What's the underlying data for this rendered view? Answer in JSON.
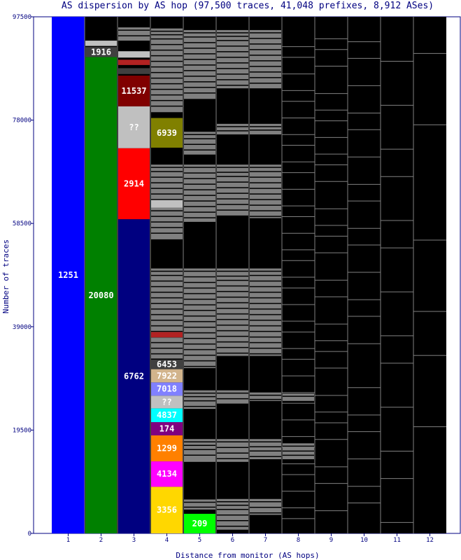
{
  "chart_data": {
    "type": "bar",
    "stacked": true,
    "title": "AS dispersion by AS hop (97,500 traces, 41,048 prefixes, 8,912 ASes)",
    "xlabel": "Distance from monitor (AS hops)",
    "ylabel": "Number of traces",
    "ylim": [
      0,
      97500
    ],
    "yticks": [
      "0",
      "19500",
      "39000",
      "58500",
      "78000",
      "97500"
    ],
    "ytick_values": [
      0,
      19500,
      39000,
      58500,
      78000,
      97500
    ],
    "categories": [
      "1",
      "2",
      "3",
      "4",
      "5",
      "6",
      "7",
      "8",
      "9",
      "10",
      "11",
      "12"
    ],
    "background_color": "#000000",
    "minor_segment_color": "#808080",
    "labeled_segments": [
      {
        "hop": 1,
        "label": "1251",
        "from": 0,
        "to": 97500,
        "color": "#0000ff"
      },
      {
        "hop": 2,
        "label": "20080",
        "from": 0,
        "to": 89900,
        "color": "#008000"
      },
      {
        "hop": 2,
        "label": "1916",
        "from": 89900,
        "to": 91800,
        "color": "#404040"
      },
      {
        "hop": 2,
        "label": "",
        "from": 92000,
        "to": 93000,
        "color": "#c0c0c0"
      },
      {
        "hop": 3,
        "label": "6762",
        "from": 0,
        "to": 59300,
        "color": "#000080"
      },
      {
        "hop": 3,
        "label": "2914",
        "from": 59300,
        "to": 72700,
        "color": "#ff0000"
      },
      {
        "hop": 3,
        "label": "??",
        "from": 72700,
        "to": 80600,
        "color": "#c0c0c0"
      },
      {
        "hop": 3,
        "label": "11537",
        "from": 80600,
        "to": 86400,
        "color": "#800000"
      },
      {
        "hop": 3,
        "label": "",
        "from": 86700,
        "to": 87800,
        "color": "#404040"
      },
      {
        "hop": 3,
        "label": "",
        "from": 88400,
        "to": 89400,
        "color": "#b22222"
      },
      {
        "hop": 3,
        "label": "",
        "from": 89800,
        "to": 91000,
        "color": "#c0c0c0"
      },
      {
        "hop": 4,
        "label": "3356",
        "from": 0,
        "to": 8800,
        "color": "#ffd700"
      },
      {
        "hop": 4,
        "label": "4134",
        "from": 8800,
        "to": 13600,
        "color": "#ff00ff"
      },
      {
        "hop": 4,
        "label": "1299",
        "from": 13600,
        "to": 18500,
        "color": "#ff8000"
      },
      {
        "hop": 4,
        "label": "174",
        "from": 18500,
        "to": 21000,
        "color": "#800080"
      },
      {
        "hop": 4,
        "label": "4837",
        "from": 21000,
        "to": 23600,
        "color": "#00ffff"
      },
      {
        "hop": 4,
        "label": "??",
        "from": 23600,
        "to": 26000,
        "color": "#c0c0c0"
      },
      {
        "hop": 4,
        "label": "7018",
        "from": 26000,
        "to": 28500,
        "color": "#8080ff"
      },
      {
        "hop": 4,
        "label": "7922",
        "from": 28500,
        "to": 31000,
        "color": "#d2b48c"
      },
      {
        "hop": 4,
        "label": "6453",
        "from": 31000,
        "to": 32800,
        "color": "#404040"
      },
      {
        "hop": 4,
        "label": "",
        "from": 37000,
        "to": 38000,
        "color": "#b22222"
      },
      {
        "hop": 4,
        "label": "6939",
        "from": 72800,
        "to": 78400,
        "color": "#808000"
      },
      {
        "hop": 4,
        "label": "",
        "from": 61500,
        "to": 62900,
        "color": "#c0c0c0"
      },
      {
        "hop": 5,
        "label": "209",
        "from": 0,
        "to": 3700,
        "color": "#00ff00"
      }
    ],
    "minor_blocks": [
      {
        "hop": 3,
        "from": 93000,
        "to": 95500
      },
      {
        "hop": 4,
        "from": 33000,
        "to": 50000
      },
      {
        "hop": 4,
        "from": 55500,
        "to": 69600
      },
      {
        "hop": 4,
        "from": 79500,
        "to": 95300
      },
      {
        "hop": 5,
        "from": 4500,
        "to": 6400
      },
      {
        "hop": 5,
        "from": 13500,
        "to": 17800
      },
      {
        "hop": 5,
        "from": 23500,
        "to": 27000
      },
      {
        "hop": 5,
        "from": 31200,
        "to": 50000
      },
      {
        "hop": 5,
        "from": 58800,
        "to": 69600
      },
      {
        "hop": 5,
        "from": 71500,
        "to": 75800
      },
      {
        "hop": 5,
        "from": 82000,
        "to": 95000
      },
      {
        "hop": 6,
        "from": 700,
        "to": 6500
      },
      {
        "hop": 6,
        "from": 13500,
        "to": 17800
      },
      {
        "hop": 6,
        "from": 24500,
        "to": 27000
      },
      {
        "hop": 6,
        "from": 33500,
        "to": 50000
      },
      {
        "hop": 6,
        "from": 60000,
        "to": 69600
      },
      {
        "hop": 6,
        "from": 75300,
        "to": 77300
      },
      {
        "hop": 6,
        "from": 84000,
        "to": 95000
      },
      {
        "hop": 7,
        "from": 3500,
        "to": 6500
      },
      {
        "hop": 7,
        "from": 14000,
        "to": 17800
      },
      {
        "hop": 7,
        "from": 25000,
        "to": 26600
      },
      {
        "hop": 7,
        "from": 33500,
        "to": 50000
      },
      {
        "hop": 7,
        "from": 59500,
        "to": 69600
      },
      {
        "hop": 7,
        "from": 75300,
        "to": 77300
      },
      {
        "hop": 7,
        "from": 84000,
        "to": 95000
      },
      {
        "hop": 8,
        "from": 14000,
        "to": 17000
      },
      {
        "hop": 8,
        "from": 25000,
        "to": 26400
      }
    ]
  }
}
